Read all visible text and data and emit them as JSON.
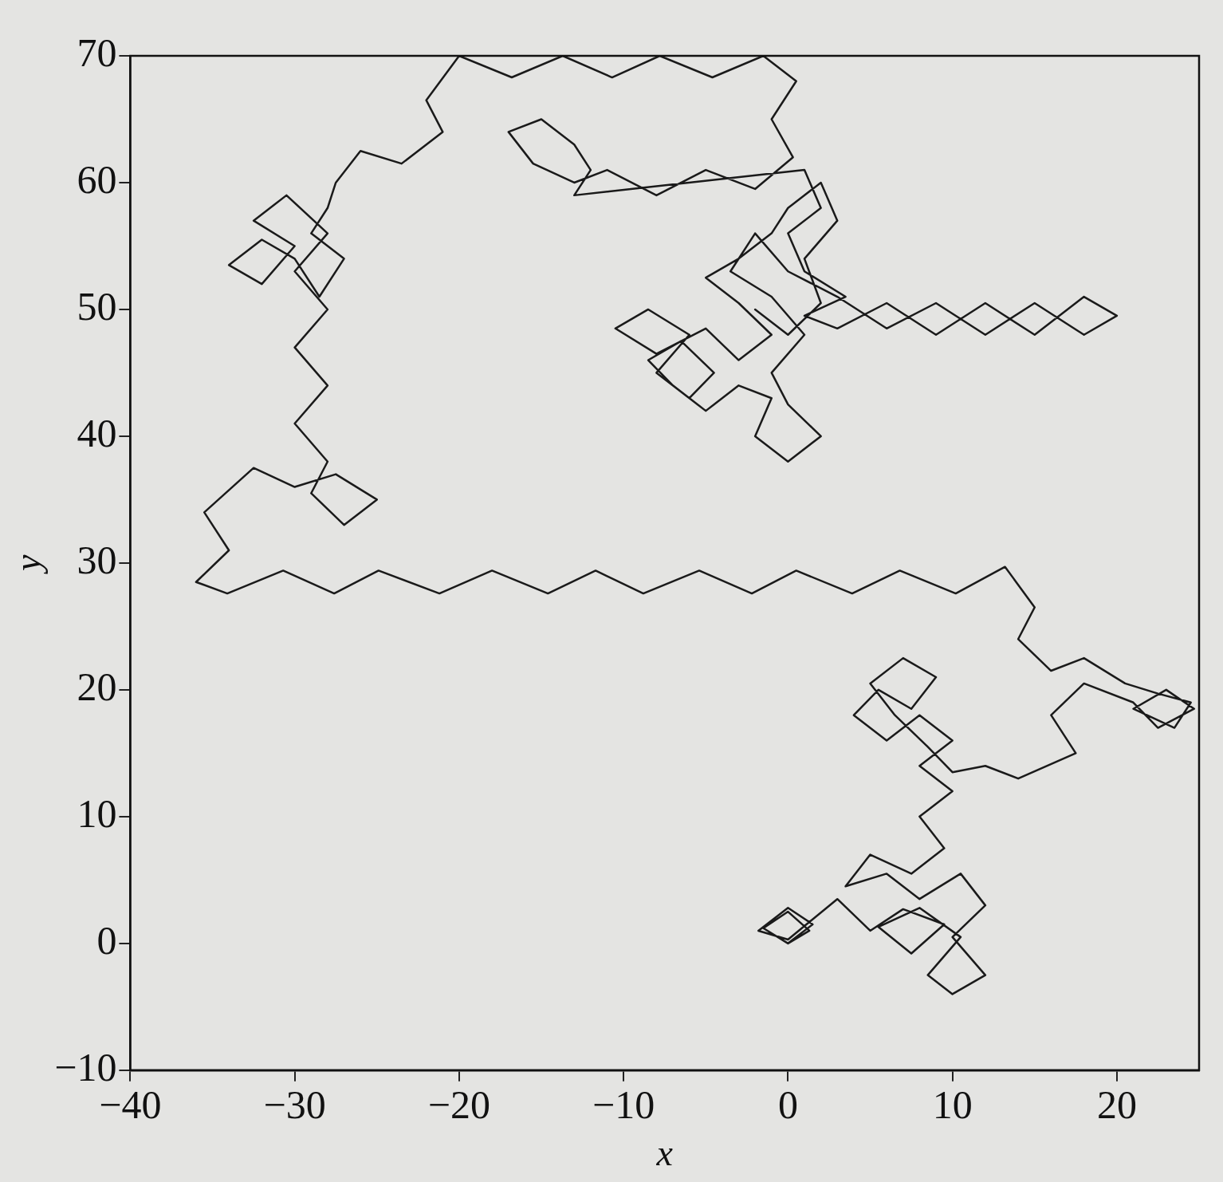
{
  "chart_data": {
    "type": "line",
    "xlabel": "x",
    "ylabel": "y",
    "xlim": [
      -40,
      25
    ],
    "ylim": [
      -10,
      70
    ],
    "xticks": [
      -40,
      -30,
      -20,
      -10,
      0,
      10,
      20
    ],
    "yticks": [
      -10,
      0,
      10,
      20,
      30,
      40,
      50,
      60,
      70
    ],
    "grid": false,
    "legend": false,
    "marker": "none",
    "line_style": "solid",
    "series": [
      {
        "color": "#1a1a1a",
        "x": [
          0,
          1.3,
          0,
          -1.5,
          0,
          1.5,
          0,
          -1.8,
          0,
          3,
          5,
          7,
          9.5,
          7.5,
          5.5,
          8,
          10.5,
          8.5,
          10,
          12,
          10,
          12,
          10.5,
          8,
          6,
          3.5,
          5,
          7.5,
          9.5,
          8,
          10,
          8,
          10,
          8,
          6,
          4,
          5.5,
          7.5,
          9,
          7,
          5,
          6.5,
          8.5,
          10,
          12,
          14,
          17.5,
          16,
          18,
          21,
          22.5,
          24.7,
          23,
          21,
          23.5,
          24.5,
          22.5,
          20.5,
          18,
          16,
          14,
          15,
          13.2,
          10.2,
          6.8,
          3.9,
          0.5,
          -2.2,
          -5.4,
          -8.8,
          -11.7,
          -14.6,
          -18,
          -21.2,
          -24.9,
          -27.6,
          -30.7,
          -34.1,
          -36,
          -34,
          -35.5,
          -32.5,
          -30,
          -27.5,
          -25,
          -27,
          -29,
          -28,
          -30,
          -28,
          -30,
          -28,
          -30,
          -28,
          -30.5,
          -32.5,
          -30,
          -32,
          -34,
          -32,
          -30,
          -28.5,
          -27,
          -29,
          -28,
          -27.5,
          -26,
          -23.5,
          -21,
          -22,
          -20,
          -16.8,
          -13.7,
          -10.7,
          -7.8,
          -4.6,
          -1.5,
          0.5,
          -1,
          0.3,
          -2,
          -5,
          -8,
          -11,
          -13,
          -15.5,
          -17,
          -15,
          -13,
          -12,
          -13,
          1,
          2,
          0,
          1,
          3.5,
          1,
          3,
          6,
          9,
          12,
          15,
          18,
          20,
          18,
          15,
          12,
          9,
          6,
          3,
          0,
          -2,
          -3.5,
          -1,
          1,
          -1,
          0,
          2,
          0,
          -2,
          -1,
          -3,
          -5,
          -7,
          -8.5,
          -6.5,
          -4.5,
          -6,
          -8,
          -6,
          -8.5,
          -10.5,
          -8,
          -5,
          -3,
          -1,
          -3,
          -5,
          -3,
          -1,
          0,
          2,
          3,
          1,
          2,
          0,
          -2
        ],
        "values": [
          0,
          1,
          2.5,
          1.2,
          0,
          1.5,
          2.8,
          1,
          0.3,
          3.5,
          1,
          2.7,
          1.5,
          -0.8,
          1.3,
          2.8,
          0.5,
          -2.5,
          -4,
          -2.5,
          0.5,
          3,
          5.5,
          3.5,
          5.5,
          4.5,
          7,
          5.5,
          7.5,
          10,
          12,
          14,
          16,
          18,
          16,
          18,
          20,
          18.5,
          21,
          22.5,
          20.5,
          18,
          15.5,
          13.5,
          14,
          13,
          15,
          18,
          20.5,
          19,
          17,
          18.5,
          20,
          18.5,
          17,
          19,
          19.7,
          20.5,
          22.5,
          21.5,
          24,
          26.5,
          29.7,
          27.6,
          29.4,
          27.6,
          29.4,
          27.6,
          29.4,
          27.6,
          29.4,
          27.6,
          29.4,
          27.6,
          29.4,
          27.6,
          29.4,
          27.6,
          28.5,
          31,
          34,
          37.5,
          36,
          37,
          35,
          33,
          35.5,
          38,
          41,
          44,
          47,
          50,
          53,
          56,
          59,
          57,
          55,
          52,
          53.5,
          55.5,
          54,
          51,
          54,
          56,
          58,
          60,
          62.5,
          61.5,
          64,
          66.5,
          70,
          68.3,
          70,
          68.3,
          70,
          68.3,
          70,
          68,
          65,
          62,
          59.5,
          61,
          59,
          61,
          60,
          61.5,
          64,
          65,
          63,
          61,
          59,
          61,
          58,
          56,
          53,
          51,
          49.5,
          48.5,
          50.5,
          48,
          50.5,
          48,
          51,
          49.5,
          48,
          50.5,
          48,
          50.5,
          48.5,
          51,
          53,
          56,
          53,
          51,
          48,
          45,
          42.5,
          40,
          38,
          40,
          43,
          44,
          42,
          44,
          46,
          47.5,
          45,
          43,
          45,
          48,
          50,
          48.5,
          46.5,
          48.5,
          46,
          48,
          50.5,
          52.5,
          54,
          56,
          58,
          60,
          57,
          54,
          50.5,
          48,
          50
        ]
      }
    ]
  }
}
